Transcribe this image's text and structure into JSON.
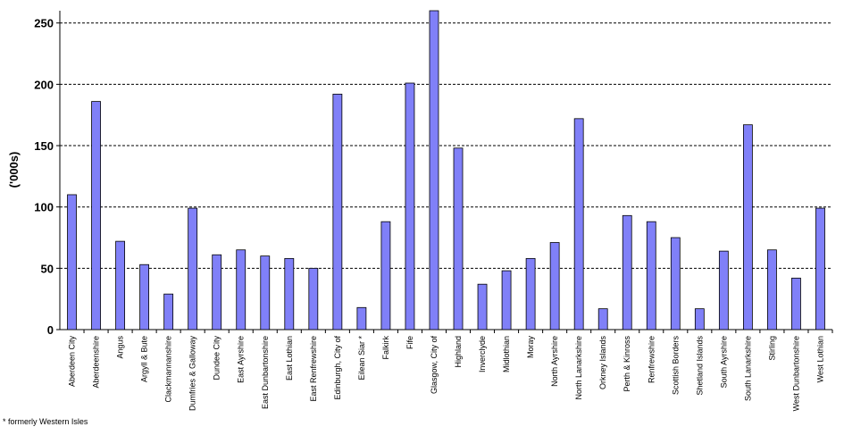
{
  "chart_data": {
    "type": "bar",
    "ylabel": "('000s)",
    "ylim": [
      0,
      260
    ],
    "yticks": [
      0,
      50,
      100,
      150,
      200,
      250
    ],
    "grid": true,
    "bar_color": "#8080f8",
    "categories": [
      "Aberdeen City",
      "Aberdeenshire",
      "Angus",
      "Argyll & Bute",
      "Clackmannanshire",
      "Dumfries & Galloway",
      "Dundee City",
      "East Ayrshire",
      "East Dunbartonshire",
      "East Lothian",
      "East Renfrewshire",
      "Edinburgh, City of",
      "Eilean Siar *",
      "Falkirk",
      "Fife",
      "Glasgow, City of",
      "Highland",
      "Inverclyde",
      "Midlothian",
      "Moray",
      "North Ayrshire",
      "North Lanarkshire",
      "Orkney Islands",
      "Perth & Kinross",
      "Renfrewshire",
      "Scottish Borders",
      "Shetland Islands",
      "South Ayrshire",
      "South Lanarkshire",
      "Stirling",
      "West Dunbartonshire",
      "West Lothian"
    ],
    "values": [
      110,
      186,
      72,
      53,
      29,
      99,
      61,
      65,
      60,
      58,
      50,
      192,
      18,
      88,
      201,
      260,
      148,
      37,
      48,
      58,
      71,
      172,
      17,
      93,
      88,
      75,
      17,
      64,
      167,
      65,
      42,
      99
    ]
  },
  "footnote": "* formerly Western Isles"
}
